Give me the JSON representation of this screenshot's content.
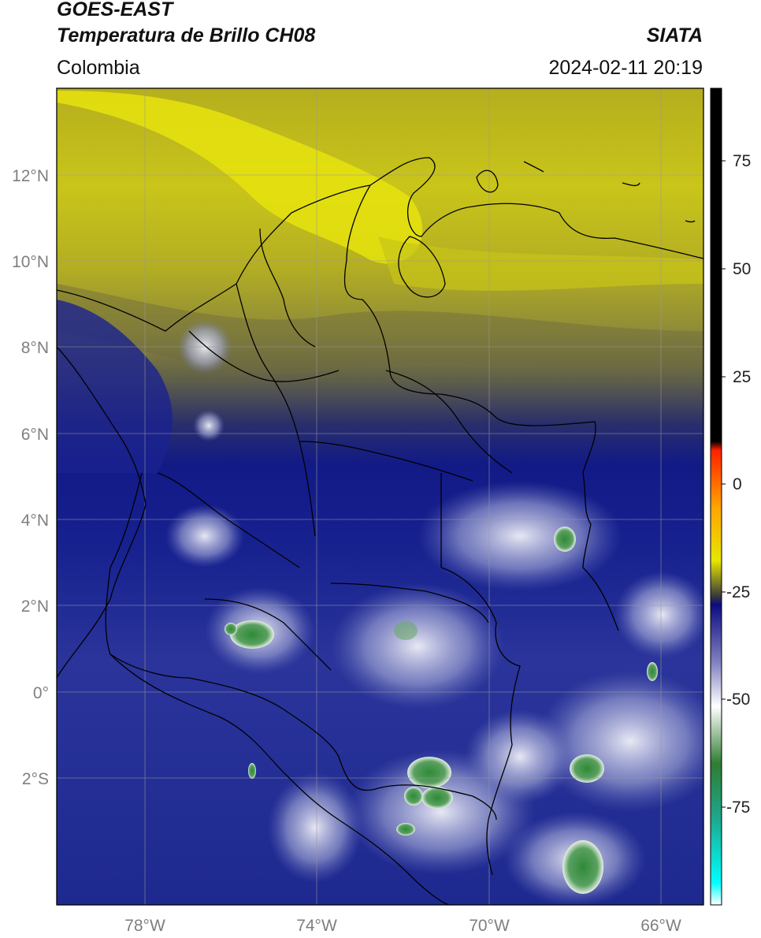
{
  "header": {
    "title": "GOES-EAST",
    "subtitle": "Temperatura de Brillo CH08",
    "brand": "SIATA",
    "region": "Colombia",
    "timestamp": "2024-02-11 20:19"
  },
  "map": {
    "lat_ticks": [
      "12°N",
      "10°N",
      "8°N",
      "6°N",
      "4°N",
      "2°N",
      "0°",
      "2°S"
    ],
    "lon_ticks": [
      "78°W",
      "74°W",
      "70°W",
      "66°W"
    ],
    "grid": true
  },
  "colorbar": {
    "ticks": [
      "75",
      "50",
      "25",
      "0",
      "-25",
      "-50",
      "-75"
    ],
    "stops": [
      {
        "value": 90,
        "color": "#000000"
      },
      {
        "value": 10,
        "color": "#000000"
      },
      {
        "value": 8,
        "color": "#ff2000"
      },
      {
        "value": -5,
        "color": "#ffa500"
      },
      {
        "value": -17,
        "color": "#e6e600"
      },
      {
        "value": -25,
        "color": "#3a3a3a"
      },
      {
        "value": -27,
        "color": "#0c0c80"
      },
      {
        "value": -40,
        "color": "#8080c0"
      },
      {
        "value": -50,
        "color": "#ffffff"
      },
      {
        "value": -63,
        "color": "#2e7d32"
      },
      {
        "value": -75,
        "color": "#1fa58a"
      },
      {
        "value": -90,
        "color": "#00ffff"
      },
      {
        "value": -95,
        "color": "#ffffff"
      }
    ]
  }
}
